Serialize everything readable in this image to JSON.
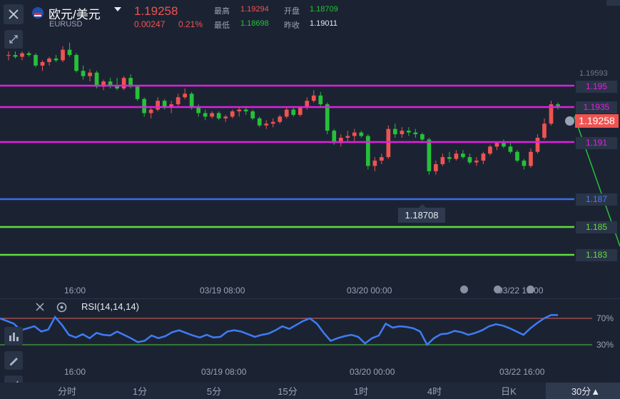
{
  "header": {
    "symbol_name": "欧元/美元",
    "symbol_code": "EURUSD",
    "last_price": "1.19258",
    "change": "0.00247",
    "change_pct": "0.21%",
    "high_label": "最高",
    "high_value": "1.19294",
    "open_label": "开盘",
    "open_value": "1.18709",
    "low_label": "最低",
    "low_value": "1.18698",
    "prev_close_label": "昨收",
    "prev_close_value": "1.19011"
  },
  "price_axis": {
    "top_tick": "1.19593",
    "level_1195": "1.195",
    "level_11935": "1.1935",
    "current_price": "1.19258",
    "level_1191": "1.191",
    "level_1187": "1.187",
    "level_1185": "1.185",
    "level_1183": "1.183"
  },
  "min_marker": "1.18708",
  "time_axis": [
    "16:00",
    "03/19 08:00",
    "03/20 00:00",
    "03/22 16:00"
  ],
  "rsi": {
    "title": "RSI(14,14,14)",
    "upper_label": "70%",
    "lower_label": "30%"
  },
  "timeframes": [
    "分时",
    "1分",
    "5分",
    "15分",
    "1时",
    "4时",
    "日K",
    "30分▲"
  ],
  "colors": {
    "background": "#1b2333",
    "up": "#ef5350",
    "down": "#26c03a",
    "magenta": "#e020e0",
    "blue": "#3b6cf0",
    "lime": "#5fe03a",
    "rsi_line": "#3f7cf4"
  },
  "chart_data": {
    "type": "candlestick",
    "ylim": [
      1.1818,
      1.1968
    ],
    "horizontal_levels": [
      1.195,
      1.1935,
      1.191,
      1.187,
      1.185,
      1.183
    ],
    "candles": [
      [
        1.1955,
        1.1957,
        1.1952,
        1.1955
      ],
      [
        1.1955,
        1.1957,
        1.1953,
        1.1954
      ],
      [
        1.1954,
        1.1957,
        1.1952,
        1.1956
      ],
      [
        1.1956,
        1.1957,
        1.1954,
        1.1955
      ],
      [
        1.1955,
        1.1956,
        1.1948,
        1.1949
      ],
      [
        1.1949,
        1.1952,
        1.1946,
        1.1951
      ],
      [
        1.1951,
        1.1954,
        1.1949,
        1.1953
      ],
      [
        1.1953,
        1.1955,
        1.1951,
        1.1952
      ],
      [
        1.1952,
        1.196,
        1.1951,
        1.1958
      ],
      [
        1.1958,
        1.1962,
        1.1954,
        1.1955
      ],
      [
        1.1955,
        1.1956,
        1.1945,
        1.1946
      ],
      [
        1.1946,
        1.1949,
        1.1941,
        1.1943
      ],
      [
        1.1943,
        1.1947,
        1.194,
        1.1945
      ],
      [
        1.1945,
        1.1946,
        1.1936,
        1.1937
      ],
      [
        1.1937,
        1.1941,
        1.1935,
        1.194
      ],
      [
        1.194,
        1.1942,
        1.1936,
        1.1938
      ],
      [
        1.1938,
        1.1942,
        1.1935,
        1.1936
      ],
      [
        1.1936,
        1.1943,
        1.1935,
        1.1942
      ],
      [
        1.1942,
        1.1944,
        1.1936,
        1.1937
      ],
      [
        1.1937,
        1.1938,
        1.1929,
        1.193
      ],
      [
        1.193,
        1.1931,
        1.192,
        1.1922
      ],
      [
        1.1922,
        1.1926,
        1.1919,
        1.1924
      ],
      [
        1.1924,
        1.1931,
        1.1923,
        1.1929
      ],
      [
        1.1929,
        1.193,
        1.1924,
        1.1925
      ],
      [
        1.1925,
        1.1929,
        1.1922,
        1.1927
      ],
      [
        1.1927,
        1.1933,
        1.1926,
        1.1931
      ],
      [
        1.1931,
        1.1936,
        1.193,
        1.1933
      ],
      [
        1.1933,
        1.1934,
        1.1924,
        1.1925
      ],
      [
        1.1925,
        1.1927,
        1.192,
        1.1922
      ],
      [
        1.1922,
        1.1924,
        1.1918,
        1.192
      ],
      [
        1.192,
        1.1923,
        1.1919,
        1.1922
      ],
      [
        1.1922,
        1.1923,
        1.1918,
        1.1919
      ],
      [
        1.1919,
        1.1921,
        1.1917,
        1.192
      ],
      [
        1.192,
        1.1924,
        1.1919,
        1.1923
      ],
      [
        1.1923,
        1.1925,
        1.192,
        1.1924
      ],
      [
        1.1924,
        1.1926,
        1.1921,
        1.1923
      ],
      [
        1.1923,
        1.1924,
        1.1918,
        1.1919
      ],
      [
        1.1919,
        1.192,
        1.1914,
        1.1915
      ],
      [
        1.1915,
        1.1918,
        1.1913,
        1.1916
      ],
      [
        1.1916,
        1.1919,
        1.1914,
        1.1917
      ],
      [
        1.1917,
        1.1921,
        1.1916,
        1.192
      ],
      [
        1.192,
        1.1925,
        1.1919,
        1.1924
      ],
      [
        1.1924,
        1.1926,
        1.192,
        1.1921
      ],
      [
        1.1921,
        1.1926,
        1.192,
        1.1925
      ],
      [
        1.1925,
        1.1931,
        1.1924,
        1.1929
      ],
      [
        1.1929,
        1.1935,
        1.1928,
        1.1932
      ],
      [
        1.1932,
        1.1934,
        1.1926,
        1.1927
      ],
      [
        1.1927,
        1.1928,
        1.191,
        1.1912
      ],
      [
        1.1912,
        1.1913,
        1.1904,
        1.1905
      ],
      [
        1.1905,
        1.191,
        1.1903,
        1.1908
      ],
      [
        1.1908,
        1.1912,
        1.1905,
        1.1909
      ],
      [
        1.1909,
        1.1913,
        1.1906,
        1.1911
      ],
      [
        1.1911,
        1.1912,
        1.1908,
        1.1909
      ],
      [
        1.1909,
        1.191,
        1.189,
        1.1892
      ],
      [
        1.1892,
        1.1897,
        1.1889,
        1.1895
      ],
      [
        1.1895,
        1.1899,
        1.1893,
        1.1897
      ],
      [
        1.1897,
        1.1915,
        1.1896,
        1.1913
      ],
      [
        1.1913,
        1.1916,
        1.1908,
        1.191
      ],
      [
        1.191,
        1.1914,
        1.1908,
        1.1912
      ],
      [
        1.1912,
        1.1914,
        1.1909,
        1.1911
      ],
      [
        1.1911,
        1.1913,
        1.1908,
        1.191
      ],
      [
        1.191,
        1.1911,
        1.1906,
        1.1907
      ],
      [
        1.1907,
        1.1908,
        1.1887,
        1.1889
      ],
      [
        1.1889,
        1.1895,
        1.1887,
        1.1893
      ],
      [
        1.1893,
        1.1899,
        1.1892,
        1.1897
      ],
      [
        1.1897,
        1.19,
        1.1894,
        1.1896
      ],
      [
        1.1896,
        1.1901,
        1.1895,
        1.1899
      ],
      [
        1.1899,
        1.1901,
        1.1896,
        1.1897
      ],
      [
        1.1897,
        1.1899,
        1.1893,
        1.1894
      ],
      [
        1.1894,
        1.1897,
        1.1892,
        1.1895
      ],
      [
        1.1895,
        1.19,
        1.1893,
        1.1899
      ],
      [
        1.1899,
        1.1904,
        1.1898,
        1.1903
      ],
      [
        1.1903,
        1.1906,
        1.1901,
        1.1905
      ],
      [
        1.1905,
        1.1907,
        1.1902,
        1.1903
      ],
      [
        1.1903,
        1.1905,
        1.1899,
        1.19
      ],
      [
        1.19,
        1.1901,
        1.1894,
        1.1895
      ],
      [
        1.1895,
        1.1896,
        1.189,
        1.1892
      ],
      [
        1.1892,
        1.1902,
        1.1891,
        1.19
      ],
      [
        1.19,
        1.191,
        1.1899,
        1.1908
      ],
      [
        1.1908,
        1.1919,
        1.1907,
        1.1916
      ],
      [
        1.1916,
        1.1929,
        1.1915,
        1.1927
      ],
      [
        1.1927,
        1.1928,
        1.1924,
        1.1926
      ]
    ],
    "rsi_values": [
      70,
      66,
      62,
      52,
      55,
      58,
      50,
      53,
      72,
      60,
      45,
      41,
      46,
      40,
      48,
      45,
      44,
      50,
      45,
      40,
      34,
      36,
      44,
      40,
      43,
      49,
      52,
      48,
      44,
      41,
      45,
      41,
      42,
      50,
      52,
      50,
      46,
      42,
      45,
      47,
      52,
      58,
      54,
      60,
      66,
      70,
      62,
      48,
      36,
      40,
      43,
      45,
      42,
      32,
      40,
      44,
      62,
      56,
      58,
      57,
      55,
      50,
      30,
      40,
      46,
      47,
      51,
      49,
      45,
      48,
      52,
      58,
      61,
      59,
      55,
      50,
      45,
      55,
      63,
      70,
      75,
      75
    ]
  }
}
